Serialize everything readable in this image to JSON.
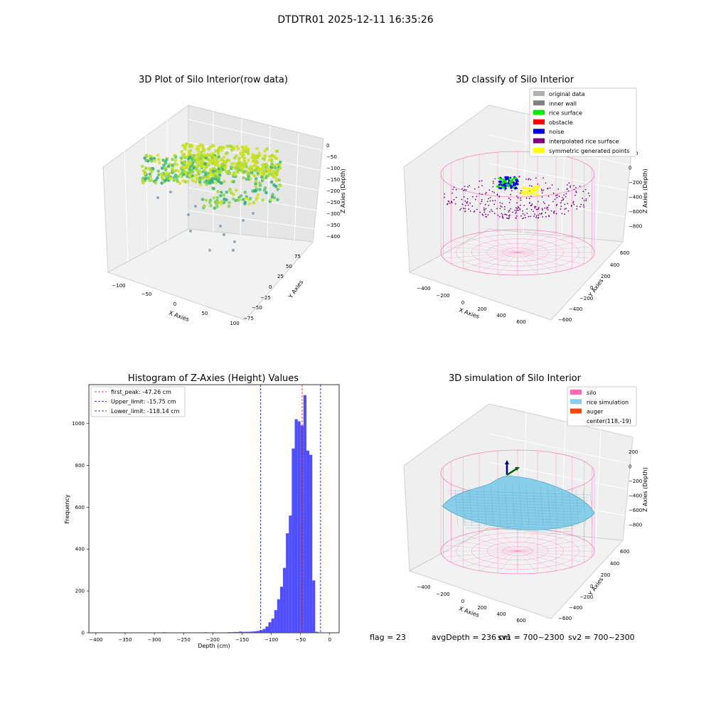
{
  "suptitle": "DTDTR01 2025-12-11 16:35:26",
  "footer": {
    "flag": "flag = 23",
    "avg": "avgDepth = 236 cm",
    "sv1": "sv1 = 700~2300",
    "sv2": "sv2 = 700~2300"
  },
  "chart_data": [
    {
      "type": "scatter",
      "projection": "3d",
      "title": "3D Plot of Silo Interior(row data)",
      "xlabel": "X Axies",
      "ylabel": "Y Axies",
      "zlabel": "Z Axies (Depth)",
      "x_ticks": [
        "−100",
        "−50",
        "0",
        "50",
        "100"
      ],
      "y_ticks": [
        "−75",
        "−50",
        "−25",
        "0",
        "25",
        "50",
        "75"
      ],
      "z_ticks": [
        "0",
        "−50",
        "−100",
        "−150",
        "−200",
        "−250",
        "−300",
        "−350",
        "−400"
      ],
      "grid": true
    },
    {
      "type": "scatter",
      "projection": "3d",
      "title": "3D classify of Silo Interior",
      "xlabel": "X Axies",
      "ylabel": "Y Axies",
      "zlabel": "Z Axies (Depth)",
      "x_ticks": [
        "−400",
        "−200",
        "0",
        "200",
        "400",
        "600"
      ],
      "y_ticks": [
        "−600",
        "−400",
        "−200",
        "0",
        "200",
        "400",
        "600"
      ],
      "z_ticks": [
        "200",
        "0",
        "−200",
        "−400",
        "−600",
        "−800"
      ],
      "legend_position": "top-right",
      "legend": [
        {
          "label": "original data",
          "color": "#b0b0b0"
        },
        {
          "label": "inner wall",
          "color": "#808080"
        },
        {
          "label": "rice surface",
          "color": "#00ee00"
        },
        {
          "label": "obstacle",
          "color": "#ff0000"
        },
        {
          "label": "noise",
          "color": "#0000ee"
        },
        {
          "label": "interpolated rice surface",
          "color": "#800080"
        },
        {
          "label": "symmetric generated points",
          "color": "#ffff00"
        }
      ],
      "grid": true
    },
    {
      "type": "bar",
      "title": "Histogram of Z-Axies (Height) Values",
      "xlabel": "Depth (cm)",
      "ylabel": "Frequency",
      "xlim": [
        -412,
        16
      ],
      "ylim": [
        0,
        1185
      ],
      "x_ticks": [
        -400,
        -350,
        -300,
        -250,
        -200,
        -150,
        -100,
        -50,
        0
      ],
      "y_ticks": [
        0,
        200,
        400,
        600,
        800,
        1000
      ],
      "bin_width": 5,
      "bins": [
        {
          "x0": -315,
          "v": 3
        },
        {
          "x0": -255,
          "v": 2
        },
        {
          "x0": -245,
          "v": 3
        },
        {
          "x0": -215,
          "v": 2
        },
        {
          "x0": -205,
          "v": 3
        },
        {
          "x0": -200,
          "v": 3
        },
        {
          "x0": -195,
          "v": 4
        },
        {
          "x0": -190,
          "v": 4
        },
        {
          "x0": -185,
          "v": 6
        },
        {
          "x0": -180,
          "v": 4
        },
        {
          "x0": -175,
          "v": 5
        },
        {
          "x0": -170,
          "v": 5
        },
        {
          "x0": -165,
          "v": 6
        },
        {
          "x0": -160,
          "v": 7
        },
        {
          "x0": -155,
          "v": 9
        },
        {
          "x0": -150,
          "v": 12
        },
        {
          "x0": -145,
          "v": 18
        },
        {
          "x0": -140,
          "v": 30
        },
        {
          "x0": -135,
          "v": 50
        },
        {
          "x0": -130,
          "v": 68
        },
        {
          "x0": -125,
          "v": 108
        },
        {
          "x0": -120,
          "v": 160
        },
        {
          "x0": -115,
          "v": 220
        },
        {
          "x0": -110,
          "v": 310
        },
        {
          "x0": -105,
          "v": 475
        },
        {
          "x0": -100,
          "v": 560
        },
        {
          "x0": -95,
          "v": 880
        },
        {
          "x0": -90,
          "v": 1020
        },
        {
          "x0": -85,
          "v": 1010
        },
        {
          "x0": -80,
          "v": 990
        },
        {
          "x0": -75,
          "v": 1135
        },
        {
          "x0": -70,
          "v": 870
        },
        {
          "x0": -65,
          "v": 850
        },
        {
          "x0": -60,
          "v": 250
        },
        {
          "x0": -55,
          "v": 5
        },
        {
          "x0": -50,
          "v": 2
        },
        {
          "x0": -45,
          "v": 2
        },
        {
          "x0": -40,
          "v": 1
        }
      ],
      "bar_color": "#4040ff",
      "lines": [
        {
          "label": "first_peak: -47.26 cm",
          "x": -47.26,
          "color": "#ff0000"
        },
        {
          "label": "Upper_limit: -15.75 cm",
          "x": -15.75,
          "color": "#0000cc"
        },
        {
          "label": "Lower_limit: -118.14 cm",
          "x": -118.14,
          "color": "#0000cc"
        }
      ],
      "legend_position": "top-left"
    },
    {
      "type": "surface",
      "projection": "3d",
      "title": "3D simulation of Silo Interior",
      "xlabel": "X Axies",
      "ylabel": "Y Axies",
      "zlabel": "Z Axies (Depth)",
      "x_ticks": [
        "−400",
        "−200",
        "0",
        "200",
        "400",
        "600"
      ],
      "y_ticks": [
        "−600",
        "−400",
        "−200",
        "0",
        "200",
        "400",
        "600"
      ],
      "z_ticks": [
        "200",
        "0",
        "−200",
        "−400",
        "−600",
        "−800"
      ],
      "legend_position": "top-right",
      "legend": [
        {
          "label": "silo",
          "color": "#ff69b4"
        },
        {
          "label": "rice simulation",
          "color": "#87ceeb"
        },
        {
          "label": "auger",
          "color": "#ff4500"
        },
        {
          "label": "center(118,-19)",
          "color": ""
        }
      ],
      "grid": true
    }
  ]
}
